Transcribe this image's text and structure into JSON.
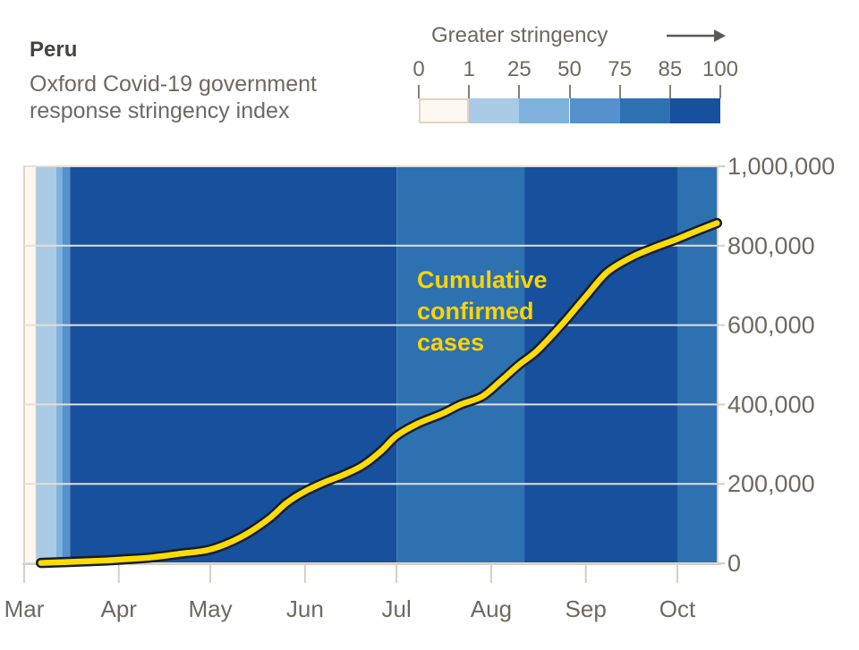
{
  "header": {
    "country": "Peru",
    "subtitle_line1": "Oxford Covid-19 government",
    "subtitle_line2": "response stringency index"
  },
  "legend": {
    "title": "Greater stringency",
    "tick_labels": [
      "0",
      "1",
      "25",
      "50",
      "75",
      "85",
      "100"
    ],
    "swatches": [
      {
        "range": "0-1",
        "color": "#fdf8f1",
        "border": "#e2d3c3"
      },
      {
        "range": "1-25",
        "color": "#a9cbe5"
      },
      {
        "range": "25-50",
        "color": "#7fb2dd"
      },
      {
        "range": "50-75",
        "color": "#5591cd"
      },
      {
        "range": "75-85",
        "color": "#2e71b1"
      },
      {
        "range": "85-100",
        "color": "#17509c"
      }
    ]
  },
  "annotation": {
    "lines": [
      "Cumulative",
      "confirmed",
      "cases"
    ],
    "color": "#ffd400"
  },
  "colors": {
    "grid": "#e5dfd5",
    "axis": "#d8cec0",
    "label": "#6f6860",
    "arrow": "#5e5852"
  },
  "chart_data": {
    "type": "line over heatmap-bands (daily stringency level as background color, cumulative cases as line)",
    "title": "Peru — Oxford Covid-19 government response stringency index",
    "day_unit": "days since Mar 1 2020",
    "x_axis": {
      "tick_labels": [
        "Mar",
        "Apr",
        "May",
        "Jun",
        "Jul",
        "Aug",
        "Sep",
        "Oct"
      ],
      "tick_days": [
        0,
        31,
        61,
        92,
        122,
        153,
        184,
        214
      ],
      "range_days": [
        0,
        227
      ]
    },
    "y_axis": {
      "tick_labels": [
        "0",
        "200,000",
        "400,000",
        "600,000",
        "800,000",
        "1,000,000"
      ],
      "tick_values": [
        0,
        200000,
        400000,
        600000,
        800000,
        1000000
      ],
      "range": [
        0,
        1000000
      ],
      "grid": true
    },
    "stringency_bands": [
      {
        "from_day": 0,
        "to_day": 4,
        "level": "0",
        "color": "#fdf8f1"
      },
      {
        "from_day": 4,
        "to_day": 10.5,
        "level": "1-25",
        "color": "#a9cbe5"
      },
      {
        "from_day": 10.5,
        "to_day": 12.5,
        "level": "25-50",
        "color": "#7fb2dd"
      },
      {
        "from_day": 12.5,
        "to_day": 15,
        "level": "50-75",
        "color": "#5591cd"
      },
      {
        "from_day": 15,
        "to_day": 122,
        "level": "85-100",
        "color": "#17509c"
      },
      {
        "from_day": 122,
        "to_day": 164,
        "level": "75-85",
        "color": "#2e71b1"
      },
      {
        "from_day": 164,
        "to_day": 214,
        "level": "85-100",
        "color": "#17509c"
      },
      {
        "from_day": 214,
        "to_day": 227,
        "level": "75-85",
        "color": "#2e71b1"
      }
    ],
    "cases_series": [
      {
        "day": 5.5,
        "cases": 1000
      },
      {
        "day": 13,
        "cases": 3000
      },
      {
        "day": 24,
        "cases": 6000
      },
      {
        "day": 31,
        "cases": 9000
      },
      {
        "day": 42,
        "cases": 15000
      },
      {
        "day": 51,
        "cases": 24000
      },
      {
        "day": 61,
        "cases": 35000
      },
      {
        "day": 71,
        "cases": 66000
      },
      {
        "day": 80,
        "cases": 111000
      },
      {
        "day": 86,
        "cases": 152000
      },
      {
        "day": 92,
        "cases": 181000
      },
      {
        "day": 99,
        "cases": 206000
      },
      {
        "day": 105,
        "cases": 224000
      },
      {
        "day": 111,
        "cases": 247000
      },
      {
        "day": 117,
        "cases": 283000
      },
      {
        "day": 122,
        "cases": 321000
      },
      {
        "day": 129,
        "cases": 352000
      },
      {
        "day": 137,
        "cases": 377000
      },
      {
        "day": 143,
        "cases": 400000
      },
      {
        "day": 150,
        "cases": 420000
      },
      {
        "day": 156,
        "cases": 458000
      },
      {
        "day": 162,
        "cases": 499000
      },
      {
        "day": 168,
        "cases": 535000
      },
      {
        "day": 176,
        "cases": 600000
      },
      {
        "day": 184,
        "cases": 672000
      },
      {
        "day": 191,
        "cases": 733000
      },
      {
        "day": 199,
        "cases": 771000
      },
      {
        "day": 206,
        "cases": 794000
      },
      {
        "day": 214,
        "cases": 817000
      },
      {
        "day": 221,
        "cases": 839000
      },
      {
        "day": 227,
        "cases": 857000
      }
    ],
    "line_color": "#ffdc00",
    "line_outline_color": "#141c2f"
  }
}
